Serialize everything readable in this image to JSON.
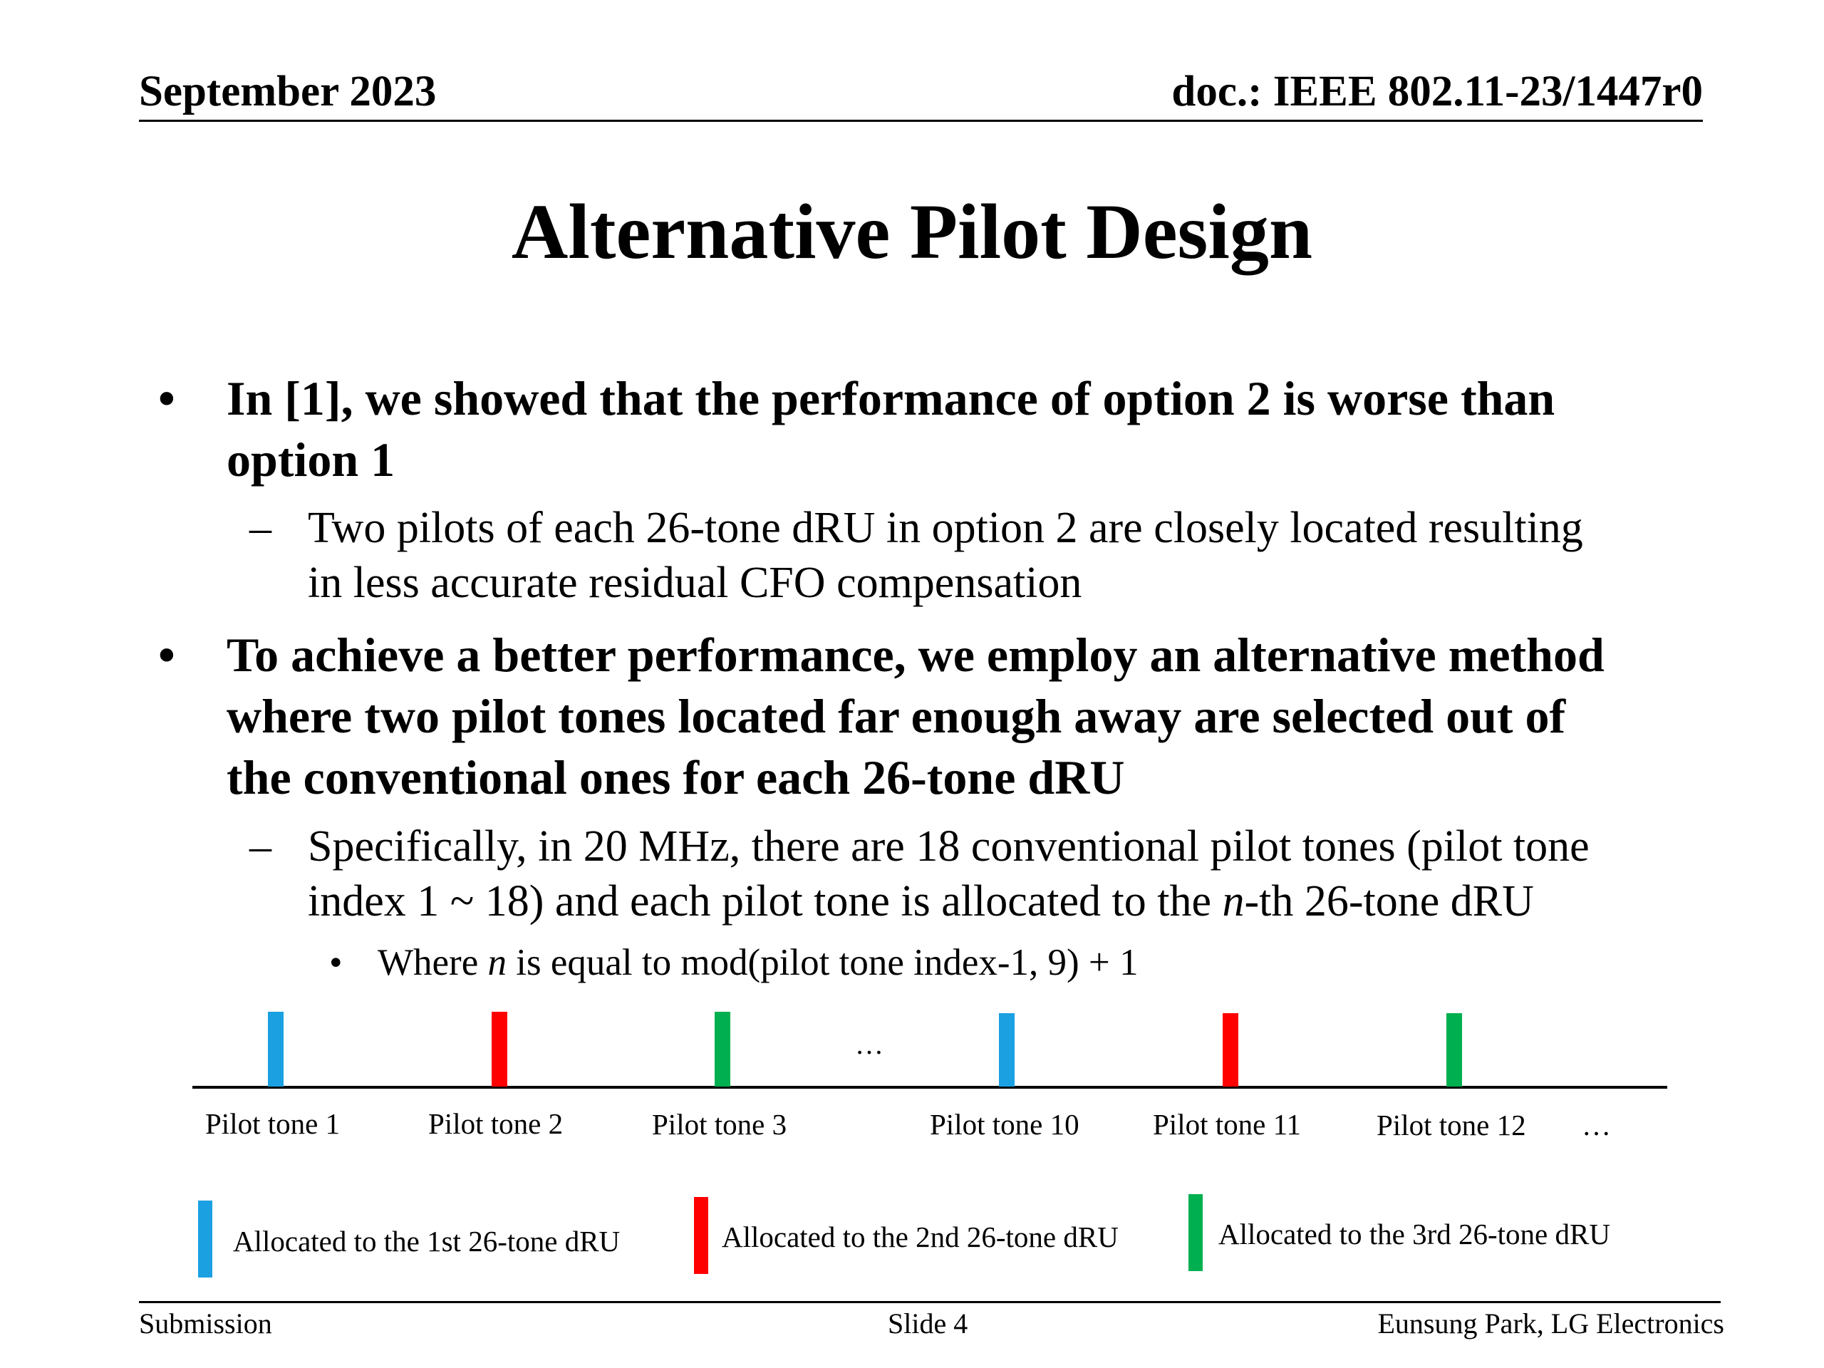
{
  "header": {
    "date": "September 2023",
    "doc": "doc.: IEEE 802.11-23/1447r0"
  },
  "title": "Alternative Pilot Design",
  "bullets": [
    {
      "symbol": "•",
      "text_lines": [
        "In [1], we showed that the performance of option 2 is worse than",
        "option 1"
      ],
      "subs": [
        {
          "symbol": "–",
          "text_lines": [
            "Two pilots of each 26-tone dRU in option 2 are closely located resulting",
            "in less accurate residual CFO compensation"
          ]
        }
      ]
    },
    {
      "symbol": "•",
      "text_lines": [
        "To achieve a better performance, we employ an alternative method",
        "where two pilot tones located far enough away are selected out of",
        "the conventional ones for each 26-tone dRU"
      ],
      "subs": [
        {
          "symbol": "–",
          "line1": "Specifically, in 20 MHz, there are 18 conventional pilot tones (pilot tone",
          "line2_before": "index 1 ~ 18) and each pilot tone is allocated to the ",
          "line2_italic": "n",
          "line2_after": "-th 26-tone dRU"
        }
      ],
      "subsub": {
        "symbol": "•",
        "before": "Where ",
        "italic": "n",
        "after": " is equal to mod(pilot tone index-1, 9) + 1"
      }
    }
  ],
  "diagram": {
    "tones": [
      {
        "label": "Pilot tone 1",
        "color": "#1BA1E2"
      },
      {
        "label": "Pilot tone 2",
        "color": "#FF0000"
      },
      {
        "label": "Pilot tone 3",
        "color": "#00B050"
      },
      {
        "label": "Pilot tone 10",
        "color": "#1BA1E2"
      },
      {
        "label": "Pilot tone 11",
        "color": "#FF0000"
      },
      {
        "label": "Pilot tone 12",
        "color": "#00B050"
      }
    ],
    "gap_ellipsis": "…",
    "trailing_ellipsis": "…"
  },
  "legend": [
    {
      "label": "Allocated to the 1st 26-tone dRU",
      "color": "#1BA1E2"
    },
    {
      "label": "Allocated to the 2nd 26-tone dRU",
      "color": "#FF0000"
    },
    {
      "label": "Allocated to the 3rd 26-tone dRU",
      "color": "#00B050"
    }
  ],
  "footer": {
    "left": "Submission",
    "center": "Slide 4",
    "right": "Eunsung Park, LG Electronics"
  }
}
